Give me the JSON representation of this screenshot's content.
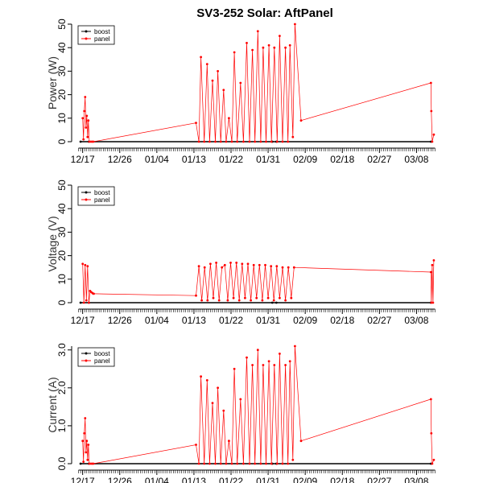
{
  "title": "SV3-252 Solar: AftPanel",
  "x_tick_labels": [
    "12/17",
    "12/26",
    "01/04",
    "01/13",
    "01/22",
    "01/31",
    "02/09",
    "02/18",
    "02/27",
    "03/08"
  ],
  "colors": {
    "boost": "#000000",
    "panel": "#ff0000"
  },
  "chart_data": [
    {
      "type": "line",
      "ylabel": "Power (W)",
      "ylim": [
        0,
        50
      ],
      "yticks": [
        "0",
        "10",
        "20",
        "30",
        "40",
        "50"
      ],
      "legend": {
        "placement": "top-left",
        "entries": [
          "boost",
          "panel"
        ]
      },
      "series": [
        {
          "name": "boost",
          "x": [
            -0.5,
            1.5,
            46,
            47,
            84.5
          ],
          "y": [
            0,
            0,
            0,
            0,
            0
          ]
        },
        {
          "name": "panel",
          "x": [
            0.0,
            0.2,
            0.4,
            0.6,
            0.8,
            1.0,
            1.2,
            1.4,
            1.6,
            2.0,
            2.3,
            2.6,
            27.5,
            28.2,
            28.7,
            29.5,
            30.2,
            30.8,
            31.5,
            32.2,
            32.8,
            33.5,
            34.2,
            34.8,
            35.5,
            36.2,
            36.8,
            37.5,
            38.3,
            39.0,
            39.8,
            40.5,
            41.2,
            41.8,
            42.5,
            43.2,
            43.8,
            44.5,
            45.2,
            45.8,
            46.5,
            47.2,
            47.8,
            48.5,
            49.2,
            49.8,
            50.3,
            51.0,
            51.5,
            53.0,
            84.5,
            84.6,
            84.8,
            85.2
          ],
          "y": [
            10,
            1,
            13,
            19,
            6,
            11,
            2,
            9,
            0,
            0,
            0,
            0,
            8,
            0,
            36,
            0,
            33,
            0,
            26,
            0,
            30,
            0,
            22,
            0,
            10,
            0,
            38,
            0,
            25,
            0,
            42,
            0,
            39,
            0,
            47,
            0,
            40,
            0,
            41,
            0,
            40,
            0,
            45,
            0,
            40,
            0,
            41,
            2,
            50,
            9,
            25,
            13,
            0,
            3
          ]
        }
      ]
    },
    {
      "type": "line",
      "ylabel": "Voltage (V)",
      "ylim": [
        0,
        50
      ],
      "yticks": [
        "0",
        "10",
        "20",
        "30",
        "40",
        "50"
      ],
      "legend": {
        "placement": "top-left",
        "entries": [
          "boost",
          "panel"
        ]
      },
      "series": [
        {
          "name": "boost",
          "x": [
            -0.5,
            1.5,
            46,
            47,
            84.5
          ],
          "y": [
            0,
            0,
            0,
            0,
            0
          ]
        },
        {
          "name": "panel",
          "x": [
            0.0,
            0.3,
            0.6,
            0.9,
            1.2,
            1.5,
            1.8,
            2.1,
            2.4,
            2.7,
            27.5,
            28.2,
            28.9,
            29.6,
            30.3,
            31.0,
            31.7,
            32.4,
            33.1,
            33.8,
            34.5,
            35.2,
            35.9,
            36.6,
            37.3,
            38.0,
            38.7,
            39.4,
            40.1,
            40.8,
            41.5,
            42.2,
            42.9,
            43.6,
            44.3,
            45.0,
            45.7,
            46.4,
            47.1,
            47.8,
            48.5,
            49.2,
            49.9,
            50.6,
            51.3,
            84.5,
            84.6,
            84.8,
            85.0,
            85.2
          ],
          "y": [
            16.5,
            0,
            16,
            1,
            15.5,
            0,
            5,
            4.5,
            4,
            3.8,
            3,
            15.5,
            1,
            15,
            1,
            16.5,
            2,
            17,
            1,
            15,
            16,
            1,
            17,
            2,
            17,
            1,
            16.5,
            2,
            16.5,
            1,
            16,
            2,
            16,
            1,
            16,
            2,
            15.5,
            1,
            15.5,
            2,
            15,
            1,
            15,
            2,
            15,
            13,
            0,
            16,
            0,
            18
          ]
        }
      ]
    },
    {
      "type": "line",
      "ylabel": "Current (A)",
      "ylim": [
        0,
        3.1
      ],
      "yticks": [
        "0.0",
        "1.0",
        "2.0",
        "3.0"
      ],
      "legend": {
        "placement": "top-left",
        "entries": [
          "boost",
          "panel"
        ]
      },
      "series": [
        {
          "name": "boost",
          "x": [
            -0.5,
            1.5,
            46,
            47,
            84.5
          ],
          "y": [
            0,
            0,
            0,
            0,
            0
          ]
        },
        {
          "name": "panel",
          "x": [
            0.0,
            0.2,
            0.4,
            0.6,
            0.8,
            1.0,
            1.2,
            1.4,
            1.6,
            2.0,
            2.3,
            2.6,
            27.5,
            28.2,
            28.7,
            29.5,
            30.2,
            30.8,
            31.5,
            32.2,
            32.8,
            33.5,
            34.2,
            34.8,
            35.5,
            36.2,
            36.8,
            37.5,
            38.3,
            39.0,
            39.8,
            40.5,
            41.2,
            41.8,
            42.5,
            43.2,
            43.8,
            44.5,
            45.2,
            45.8,
            46.5,
            47.2,
            47.8,
            48.5,
            49.2,
            49.8,
            50.3,
            51.0,
            51.5,
            53.0,
            84.5,
            84.6,
            84.8,
            85.2
          ],
          "y": [
            0.6,
            0.05,
            0.8,
            1.2,
            0.3,
            0.6,
            0.1,
            0.5,
            0,
            0,
            0,
            0,
            0.5,
            0,
            2.3,
            0,
            2.2,
            0,
            1.6,
            0,
            2.0,
            0,
            1.4,
            0,
            0.6,
            0,
            2.5,
            0,
            1.7,
            0,
            2.8,
            0,
            2.6,
            0,
            3.0,
            0,
            2.6,
            0,
            2.7,
            0,
            2.6,
            0,
            2.9,
            0,
            2.6,
            0,
            2.7,
            0.1,
            3.1,
            0.6,
            1.7,
            0.8,
            0,
            0.1
          ]
        }
      ]
    }
  ]
}
